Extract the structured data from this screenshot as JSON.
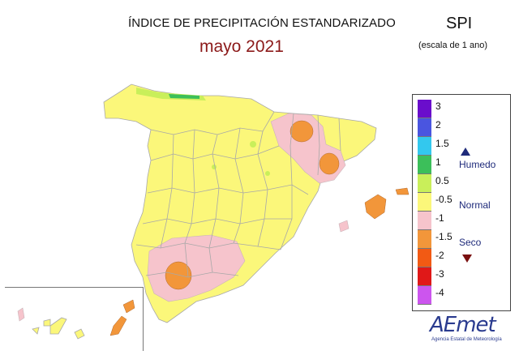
{
  "header": {
    "title": "ÍNDICE DE PRECIPITACIÓN ESTANDARIZADO",
    "period": "mayo 2021",
    "index_name": "SPI",
    "scale_note": "(escala de 1 ano)"
  },
  "legend": {
    "labels": [
      "3",
      "2",
      "1.5",
      "1",
      "0.5",
      "-0.5",
      "-1",
      "-1.5",
      "-2",
      "-3",
      "-4"
    ],
    "colors": [
      "#6a0dcc",
      "#4a55e0",
      "#33c8ee",
      "#3cbf5a",
      "#c9ef5a",
      "#fbf77a",
      "#f6c4cc",
      "#f2963a",
      "#f25a14",
      "#e01818",
      "#cc55ee"
    ],
    "class_humid": "Humedo",
    "class_normal": "Normal",
    "class_dry": "Seco"
  },
  "logo": {
    "name": "AEmet",
    "subtitle": "Agencia Estatal de Meteorología"
  },
  "map_colors": {
    "land": "#fbf77a",
    "dry": "#f6c4cc",
    "very_dry": "#f2963a",
    "wet": "#c9ef5a",
    "very_wet": "#3cbf5a",
    "borders": "#a8a8a8"
  }
}
